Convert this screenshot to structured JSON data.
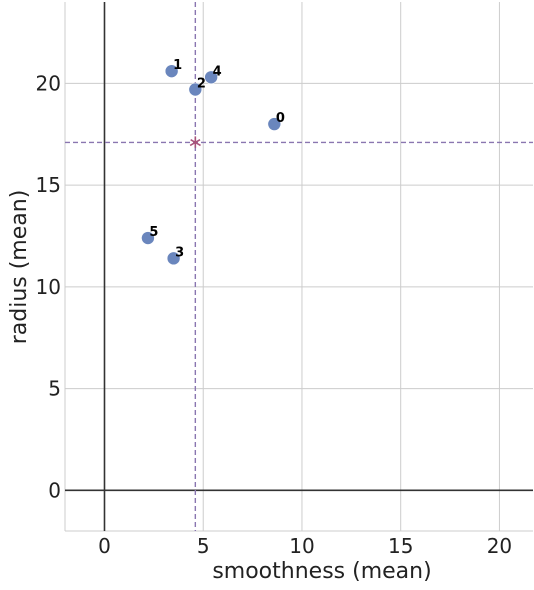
{
  "chart_data": {
    "type": "scatter",
    "xlabel": "smoothness (mean)",
    "ylabel": "radius (mean)",
    "xlim": [
      -2,
      21.7
    ],
    "ylim": [
      -2,
      24
    ],
    "xticks": [
      0,
      5,
      10,
      15,
      20
    ],
    "yticks": [
      0,
      5,
      10,
      15,
      20
    ],
    "grid": true,
    "points": [
      {
        "label": "0",
        "x": 8.6,
        "y": 18.0
      },
      {
        "label": "1",
        "x": 3.4,
        "y": 20.6
      },
      {
        "label": "2",
        "x": 4.6,
        "y": 19.7
      },
      {
        "label": "3",
        "x": 3.5,
        "y": 11.4
      },
      {
        "label": "4",
        "x": 5.4,
        "y": 20.3
      },
      {
        "label": "5",
        "x": 2.2,
        "y": 12.4
      }
    ],
    "reference": {
      "x": 4.6,
      "y": 17.1,
      "marker": "star"
    },
    "colors": {
      "points": "#6a86bd",
      "reference": "#a8527a",
      "reference_lines": "#8a76b0",
      "grid": "#cccccc",
      "zero_lines": "#333333"
    }
  }
}
